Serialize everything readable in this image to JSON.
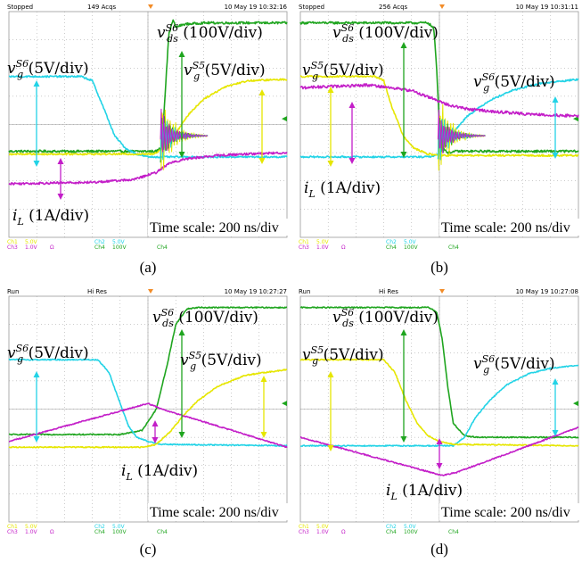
{
  "colors": {
    "ch1": "#e6e600",
    "ch2": "#22d3e6",
    "ch3": "#c31ec8",
    "ch4": "#1fa51f",
    "grid": "#9a9a9a",
    "background": "#ffffff"
  },
  "chart_data": [
    {
      "type": "line",
      "id": "a",
      "caption": "(a)",
      "status": "Stopped",
      "acqs": "149 Acqs",
      "timestamp": "10 May 19 10:32:16",
      "time_scale": "Time scale: 200 ns/div",
      "xlim": [
        0,
        10
      ],
      "ylim": [
        0,
        8
      ],
      "footer": {
        "ch1": "Ch1",
        "ch1_scale": "5.0V",
        "ch2": "Ch2",
        "ch2_scale": "5.0V",
        "ch3": "Ch3",
        "ch3_scale": "1.0V",
        "ch3_unit": "Ω",
        "ch4": "Ch4",
        "ch4_scale": "100V",
        "ch4_b": "Ch4"
      },
      "labels": {
        "vds": "v_ds^S6 (100V/div)",
        "vg6": "v_g^S6 (5V/div)",
        "vg5": "v_g^S5 (5V/div)",
        "iL": "i_L (1A/div)"
      },
      "series": [
        {
          "name": "v_ds^S6 (100V/div)",
          "channel": "ch4",
          "noise": 0.04,
          "x": [
            0,
            5.3,
            5.5,
            5.6,
            5.75,
            5.9,
            6.0,
            6.3,
            7,
            10
          ],
          "y": [
            3.05,
            3.05,
            3.2,
            4.8,
            7.2,
            7.7,
            7.45,
            7.55,
            7.6,
            7.6
          ]
        },
        {
          "name": "v_g^S6 (5V/div)",
          "channel": "ch2",
          "noise": 0.03,
          "x": [
            0,
            2.6,
            3.0,
            3.4,
            3.8,
            4.2,
            4.6,
            5.0,
            10
          ],
          "y": [
            5.7,
            5.7,
            5.55,
            4.6,
            3.6,
            3.15,
            2.95,
            2.85,
            2.85
          ]
        },
        {
          "name": "v_g^S5 (5V/div)",
          "channel": "ch1",
          "noise": 0.03,
          "x": [
            0,
            5.2,
            5.6,
            6.0,
            6.5,
            7.0,
            7.8,
            8.6,
            10
          ],
          "y": [
            2.95,
            2.95,
            3.2,
            3.7,
            4.4,
            4.9,
            5.35,
            5.55,
            5.6
          ]
        },
        {
          "name": "i_L (1A/div)",
          "channel": "ch3",
          "noise": 0.04,
          "x": [
            0,
            3.0,
            4.5,
            5.3,
            5.8,
            6.5,
            7.5,
            8.5,
            10
          ],
          "y": [
            1.9,
            1.95,
            2.05,
            2.3,
            2.65,
            2.8,
            2.9,
            2.95,
            3.0
          ]
        }
      ]
    },
    {
      "type": "line",
      "id": "b",
      "caption": "(b)",
      "status": "Stopped",
      "acqs": "256 Acqs",
      "timestamp": "10 May 19 10:31:11",
      "time_scale": "Time scale: 200 ns/div",
      "xlim": [
        0,
        10
      ],
      "ylim": [
        0,
        8
      ],
      "footer": {
        "ch1": "Ch1",
        "ch1_scale": "5.0V",
        "ch2": "Ch2",
        "ch2_scale": "5.0V",
        "ch3": "Ch3",
        "ch3_scale": "1.0V",
        "ch3_unit": "Ω",
        "ch4": "Ch4",
        "ch4_scale": "100V",
        "ch4_b": "Ch4"
      },
      "labels": {
        "vds": "v_ds^S6 (100V/div)",
        "vg6": "v_g^S6 (5V/div)",
        "vg5": "v_g^S5 (5V/div)",
        "iL": "i_L (1A/div)"
      },
      "series": [
        {
          "name": "v_ds^S6 (100V/div)",
          "channel": "ch4",
          "noise": 0.04,
          "x": [
            0,
            4.6,
            4.8,
            4.9,
            5.0,
            5.1,
            5.3,
            5.6,
            10
          ],
          "y": [
            7.6,
            7.6,
            7.4,
            6.0,
            4.0,
            3.2,
            3.0,
            3.05,
            3.05
          ]
        },
        {
          "name": "v_g^S6 (5V/div)",
          "channel": "ch2",
          "noise": 0.03,
          "x": [
            0,
            4.6,
            5.0,
            5.4,
            6.0,
            6.8,
            7.6,
            8.6,
            10
          ],
          "y": [
            2.85,
            2.85,
            2.95,
            3.6,
            4.3,
            4.85,
            5.2,
            5.45,
            5.6
          ]
        },
        {
          "name": "v_g^S5 (5V/div)",
          "channel": "ch1",
          "noise": 0.03,
          "x": [
            0,
            2.7,
            3.0,
            3.3,
            3.7,
            4.1,
            4.6,
            5.0,
            10
          ],
          "y": [
            5.7,
            5.7,
            5.55,
            4.6,
            3.6,
            3.15,
            2.95,
            2.9,
            2.9
          ]
        },
        {
          "name": "i_L (1A/div)",
          "channel": "ch3",
          "noise": 0.05,
          "x": [
            0,
            2.5,
            4.0,
            4.8,
            5.3,
            6.0,
            7.0,
            8.5,
            10
          ],
          "y": [
            5.3,
            5.4,
            5.2,
            4.9,
            4.7,
            4.55,
            4.45,
            4.35,
            4.3
          ]
        }
      ]
    },
    {
      "type": "line",
      "id": "c",
      "caption": "(c)",
      "status": "Run",
      "acqs": "Hi Res",
      "timestamp": "10 May 19 10:27:27",
      "time_scale": "Time scale: 200 ns/div",
      "xlim": [
        0,
        10
      ],
      "ylim": [
        0,
        8
      ],
      "footer": {
        "ch1": "Ch1",
        "ch1_scale": "5.0V",
        "ch2": "Ch2",
        "ch2_scale": "5.0V",
        "ch3": "Ch3",
        "ch3_scale": "1.0V",
        "ch3_unit": "Ω",
        "ch4": "Ch4",
        "ch4_scale": "100V",
        "ch4_b": "Ch4"
      },
      "labels": {
        "vds": "v_ds^S6 (100V/div)",
        "vg6": "v_g^S6 (5V/div)",
        "vg5": "v_g^S5 (5V/div)",
        "iL": "i_L (1A/div)"
      },
      "series": [
        {
          "name": "v_ds^S6 (100V/div)",
          "channel": "ch4",
          "noise": 0.02,
          "x": [
            0,
            4.0,
            4.8,
            5.3,
            5.7,
            6.0,
            6.4,
            6.8,
            10
          ],
          "y": [
            3.1,
            3.1,
            3.25,
            4.0,
            5.6,
            7.0,
            7.55,
            7.6,
            7.6
          ]
        },
        {
          "name": "v_g^S6 (5V/div)",
          "channel": "ch2",
          "noise": 0.02,
          "x": [
            0,
            3.2,
            3.6,
            4.0,
            4.3,
            4.6,
            5.0,
            5.5,
            10
          ],
          "y": [
            5.75,
            5.75,
            5.3,
            4.2,
            3.4,
            3.0,
            2.85,
            2.75,
            2.7
          ]
        },
        {
          "name": "v_g^S5 (5V/div)",
          "channel": "ch1",
          "noise": 0.02,
          "x": [
            0,
            4.8,
            5.3,
            5.8,
            6.3,
            6.8,
            7.5,
            8.5,
            10
          ],
          "y": [
            2.65,
            2.65,
            2.75,
            3.2,
            3.8,
            4.3,
            4.8,
            5.2,
            5.4
          ]
        },
        {
          "name": "i_L (1A/div)",
          "channel": "ch3",
          "noise": 0.02,
          "x": [
            0,
            5.0,
            5.5,
            10
          ],
          "y": [
            2.85,
            4.2,
            4.0,
            2.65
          ]
        }
      ]
    },
    {
      "type": "line",
      "id": "d",
      "caption": "(d)",
      "status": "Run",
      "acqs": "Hi Res",
      "timestamp": "10 May 19 10:27:08",
      "time_scale": "Time scale: 200 ns/div",
      "xlim": [
        0,
        10
      ],
      "ylim": [
        0,
        8
      ],
      "footer": {
        "ch1": "Ch1",
        "ch1_scale": "5.0V",
        "ch2": "Ch2",
        "ch2_scale": "5.0V",
        "ch3": "Ch3",
        "ch3_scale": "1.0V",
        "ch3_unit": "Ω",
        "ch4": "Ch4",
        "ch4_scale": "100V",
        "ch4_b": "Ch4"
      },
      "labels": {
        "vds": "v_ds^S6 (100V/div)",
        "vg6": "v_g^S6 (5V/div)",
        "vg5": "v_g^S5 (5V/div)",
        "iL": "i_L (1A/div)"
      },
      "series": [
        {
          "name": "v_ds^S6 (100V/div)",
          "channel": "ch4",
          "noise": 0.02,
          "x": [
            0,
            4.6,
            4.9,
            5.1,
            5.3,
            5.5,
            5.9,
            6.4,
            10
          ],
          "y": [
            7.6,
            7.6,
            7.45,
            6.5,
            4.8,
            3.5,
            3.05,
            3.0,
            3.0
          ]
        },
        {
          "name": "v_g^S6 (5V/div)",
          "channel": "ch2",
          "noise": 0.02,
          "x": [
            0,
            5.5,
            5.9,
            6.3,
            6.8,
            7.4,
            8.2,
            9.0,
            10
          ],
          "y": [
            2.7,
            2.7,
            3.0,
            3.7,
            4.3,
            4.85,
            5.25,
            5.45,
            5.55
          ]
        },
        {
          "name": "v_g^S5 (5V/div)",
          "channel": "ch1",
          "noise": 0.02,
          "x": [
            0,
            3.0,
            3.4,
            3.8,
            4.2,
            4.6,
            5.0,
            5.5,
            10
          ],
          "y": [
            5.75,
            5.75,
            5.3,
            4.3,
            3.5,
            3.05,
            2.85,
            2.75,
            2.7
          ]
        },
        {
          "name": "i_L (1A/div)",
          "channel": "ch3",
          "noise": 0.02,
          "x": [
            0,
            5.1,
            5.6,
            10
          ],
          "y": [
            3.0,
            1.65,
            1.75,
            3.35
          ]
        }
      ]
    }
  ]
}
